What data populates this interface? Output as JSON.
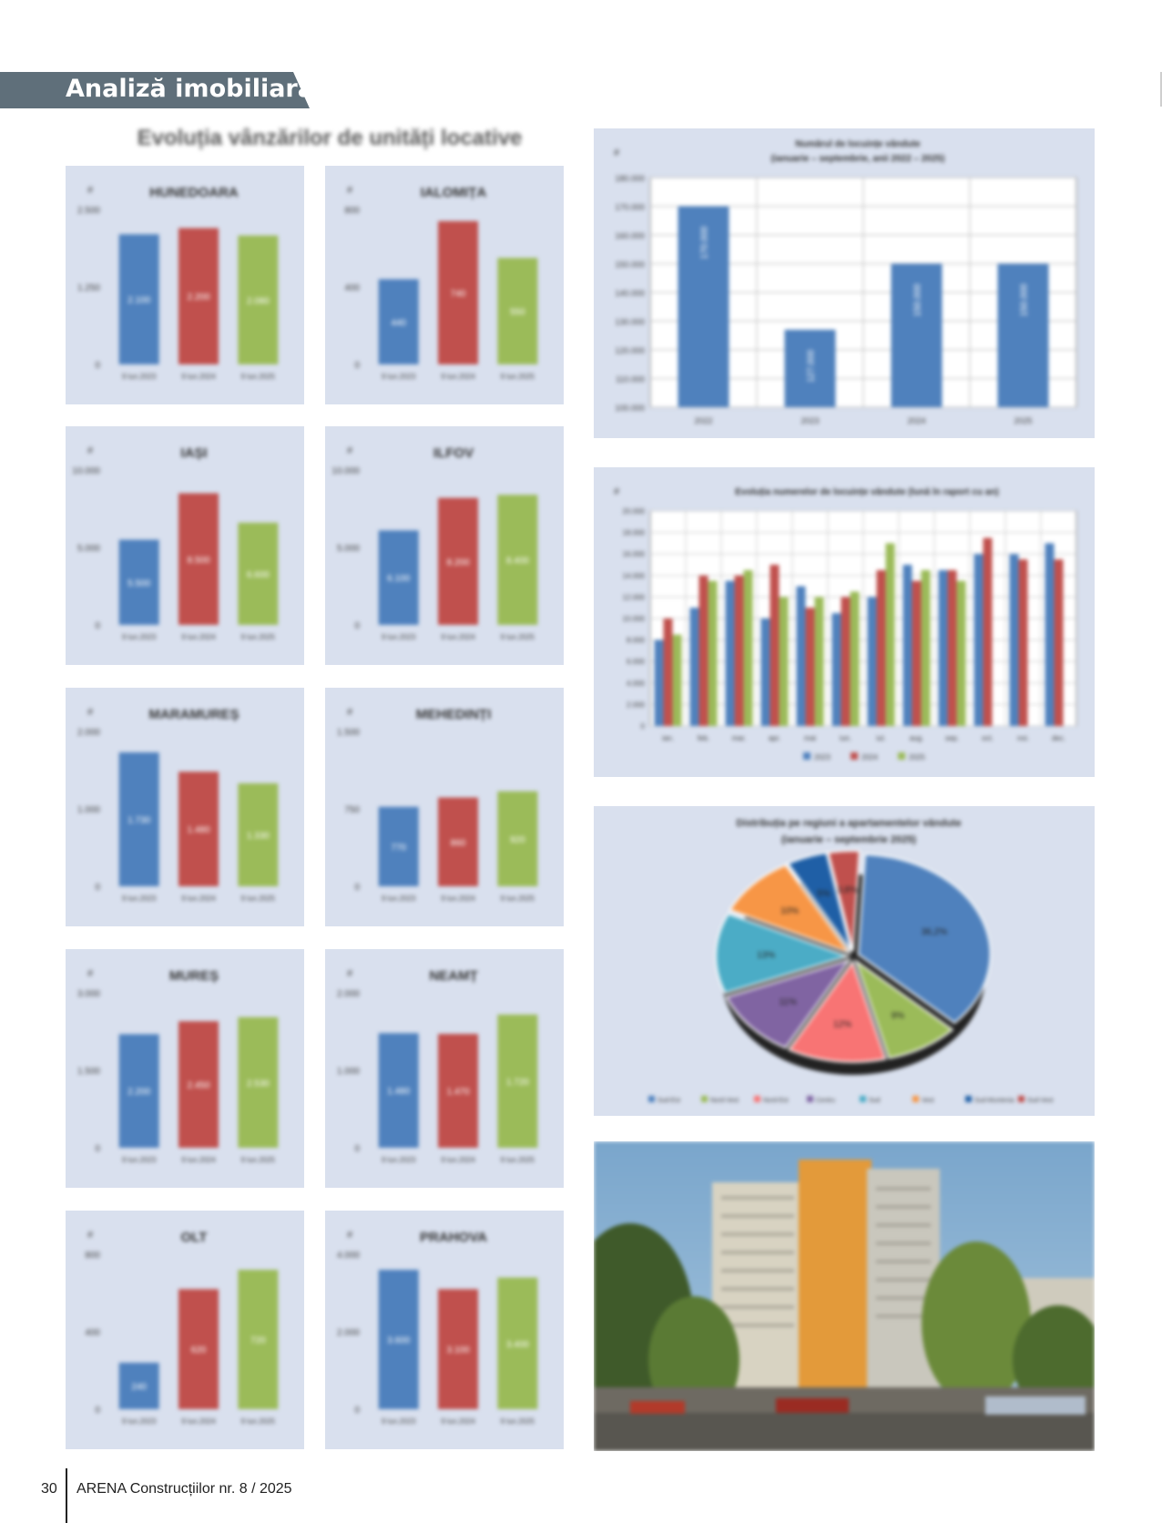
{
  "header": {
    "title": "Analiză imobiliară"
  },
  "section": {
    "title": "Evoluția vânzărilor de unități locative"
  },
  "colors": {
    "blue": "#4f81bd",
    "red": "#c0504d",
    "green": "#9bbb59",
    "purple": "#8064a2",
    "cyan": "#4bacc6",
    "orange": "#f79646",
    "panel": "#d9e0ee",
    "header_band": "#5f6f7a"
  },
  "footer": {
    "page_number": "30",
    "magazine": "ARENA Construcțiilor nr. 8 / 2025"
  },
  "chart_data": [
    {
      "type": "bar",
      "title": "HUNEDOARA",
      "ylabel": "#",
      "ylim": [
        0,
        2500
      ],
      "yticks": [
        "2.500",
        "1.250",
        "0"
      ],
      "categories": [
        "9 lun.2023",
        "9 lun.2024",
        "9 lun.2025"
      ],
      "values": [
        2100,
        2200,
        2080
      ],
      "data_labels": [
        "2.100",
        "2.200",
        "2.080"
      ],
      "colors": [
        "#4f81bd",
        "#c0504d",
        "#9bbb59"
      ]
    },
    {
      "type": "bar",
      "title": "IALOMIȚA",
      "ylabel": "#",
      "ylim": [
        0,
        800
      ],
      "yticks": [
        "800",
        "400",
        "0"
      ],
      "categories": [
        "9 lun.2023",
        "9 lun.2024",
        "9 lun.2025"
      ],
      "values": [
        440,
        740,
        550
      ],
      "data_labels": [
        "440",
        "740",
        "550"
      ],
      "colors": [
        "#4f81bd",
        "#c0504d",
        "#9bbb59"
      ]
    },
    {
      "type": "bar",
      "title": "IAȘI",
      "ylabel": "#",
      "ylim": [
        0,
        10000
      ],
      "yticks": [
        "10.000",
        "5.000",
        "0"
      ],
      "categories": [
        "9 lun.2023",
        "9 lun.2024",
        "9 lun.2025"
      ],
      "values": [
        5500,
        8500,
        6600
      ],
      "data_labels": [
        "5.500",
        "8.500",
        "6.600"
      ],
      "colors": [
        "#4f81bd",
        "#c0504d",
        "#9bbb59"
      ]
    },
    {
      "type": "bar",
      "title": "ILFOV",
      "ylabel": "#",
      "ylim": [
        0,
        10000
      ],
      "yticks": [
        "10.000",
        "5.000",
        "0"
      ],
      "categories": [
        "9 lun.2023",
        "9 lun.2024",
        "9 lun.2025"
      ],
      "values": [
        6100,
        8200,
        8400
      ],
      "data_labels": [
        "6.100",
        "8.200",
        "8.400"
      ],
      "colors": [
        "#4f81bd",
        "#c0504d",
        "#9bbb59"
      ]
    },
    {
      "type": "bar",
      "title": "MARAMUREȘ",
      "ylabel": "#",
      "ylim": [
        0,
        2000
      ],
      "yticks": [
        "2.000",
        "1.000",
        "0"
      ],
      "categories": [
        "9 lun.2023",
        "9 lun.2024",
        "9 lun.2025"
      ],
      "values": [
        1730,
        1480,
        1330
      ],
      "data_labels": [
        "1.730",
        "1.480",
        "1.330"
      ],
      "colors": [
        "#4f81bd",
        "#c0504d",
        "#9bbb59"
      ]
    },
    {
      "type": "bar",
      "title": "MEHEDINȚI",
      "ylabel": "#",
      "ylim": [
        0,
        1500
      ],
      "yticks": [
        "1.500",
        "750",
        "0"
      ],
      "categories": [
        "9 lun.2023",
        "9 lun.2024",
        "9 lun.2025"
      ],
      "values": [
        770,
        860,
        920
      ],
      "data_labels": [
        "770",
        "860",
        "920"
      ],
      "colors": [
        "#4f81bd",
        "#c0504d",
        "#9bbb59"
      ]
    },
    {
      "type": "bar",
      "title": "MUREȘ",
      "ylabel": "#",
      "ylim": [
        0,
        3000
      ],
      "yticks": [
        "3.000",
        "1.500",
        "0"
      ],
      "categories": [
        "9 lun.2023",
        "9 lun.2024",
        "9 lun.2025"
      ],
      "values": [
        2200,
        2450,
        2530
      ],
      "data_labels": [
        "2.200",
        "2.450",
        "2.530"
      ],
      "colors": [
        "#4f81bd",
        "#c0504d",
        "#9bbb59"
      ]
    },
    {
      "type": "bar",
      "title": "NEAMȚ",
      "ylabel": "#",
      "ylim": [
        0,
        2000
      ],
      "yticks": [
        "2.000",
        "1.000",
        "0"
      ],
      "categories": [
        "9 lun.2023",
        "9 lun.2024",
        "9 lun.2025"
      ],
      "values": [
        1480,
        1470,
        1720
      ],
      "data_labels": [
        "1.480",
        "1.470",
        "1.720"
      ],
      "colors": [
        "#4f81bd",
        "#c0504d",
        "#9bbb59"
      ]
    },
    {
      "type": "bar",
      "title": "OLT",
      "ylabel": "#",
      "ylim": [
        0,
        800
      ],
      "yticks": [
        "800",
        "400",
        "0"
      ],
      "categories": [
        "9 lun.2023",
        "9 lun.2024",
        "9 lun.2025"
      ],
      "values": [
        240,
        620,
        720
      ],
      "data_labels": [
        "240",
        "620",
        "720"
      ],
      "colors": [
        "#4f81bd",
        "#c0504d",
        "#9bbb59"
      ]
    },
    {
      "type": "bar",
      "title": "PRAHOVA",
      "ylabel": "#",
      "ylim": [
        0,
        4000
      ],
      "yticks": [
        "4.000",
        "2.000",
        "0"
      ],
      "categories": [
        "9 lun.2023",
        "9 lun.2024",
        "9 lun.2025"
      ],
      "values": [
        3600,
        3100,
        3400
      ],
      "data_labels": [
        "3.600",
        "3.100",
        "3.400"
      ],
      "colors": [
        "#4f81bd",
        "#c0504d",
        "#9bbb59"
      ]
    },
    {
      "type": "bar",
      "title": "Numărul de locuințe vândute",
      "subtitle": "(ianuarie – septembrie, anii 2022 – 2025)",
      "ylabel": "#",
      "ylim": [
        100000,
        180000
      ],
      "yticks": [
        "180.000",
        "170.000",
        "160.000",
        "150.000",
        "140.000",
        "130.000",
        "120.000",
        "110.000",
        "100.000"
      ],
      "categories": [
        "2022",
        "2023",
        "2024",
        "2025"
      ],
      "values": [
        170000,
        127000,
        150000,
        150000
      ],
      "data_labels": [
        "170.000",
        "127.000",
        "150.000",
        "150.000"
      ],
      "colors": [
        "#4f81bd"
      ]
    },
    {
      "type": "bar",
      "title": "Evoluția numerelor de locuințe vândute (lună în raport cu an)",
      "ylabel": "#",
      "ylim": [
        0,
        20000
      ],
      "yticks": [
        "20.000",
        "18.000",
        "16.000",
        "14.000",
        "12.000",
        "10.000",
        "8.000",
        "6.000",
        "4.000",
        "2.000",
        "0"
      ],
      "categories": [
        "ian.",
        "feb.",
        "mar.",
        "apr.",
        "mai",
        "iun.",
        "iul.",
        "aug.",
        "sep.",
        "oct.",
        "noi.",
        "dec."
      ],
      "series": [
        {
          "name": "2023",
          "color": "#4f81bd",
          "values": [
            8000,
            11000,
            13500,
            10000,
            13000,
            10500,
            12000,
            15000,
            14500,
            16000,
            16000,
            17000
          ]
        },
        {
          "name": "2024",
          "color": "#c0504d",
          "values": [
            10000,
            14000,
            14000,
            15000,
            11000,
            12000,
            14500,
            13500,
            14500,
            17500,
            15500,
            15500
          ]
        },
        {
          "name": "2025",
          "color": "#9bbb59",
          "values": [
            8500,
            13500,
            14500,
            12000,
            12000,
            12500,
            17000,
            14500,
            13500,
            null,
            null,
            null
          ]
        }
      ],
      "legend": "bottom"
    },
    {
      "type": "pie",
      "title": "Distribuția pe regiuni a apartamentelor vândute",
      "subtitle": "(ianuarie – septembrie 2025)",
      "categories": [
        "Sud-Est",
        "Nord-Vest",
        "Nord-Est",
        "Centru",
        "Sud",
        "Vest",
        "Sud-Muntenia",
        "Sud-Vest"
      ],
      "values": [
        36.2,
        9,
        12,
        11,
        13,
        10,
        5,
        3.8
      ],
      "data_labels": [
        "36,2%",
        "9%",
        "12%",
        "11%",
        "13%",
        "10%",
        "5%",
        "3,8%"
      ],
      "colors": [
        "#4f81bd",
        "#9bbb59",
        "#f87474",
        "#8064a2",
        "#4bacc6",
        "#f79646",
        "#1f5fa6",
        "#c0504d"
      ],
      "legend": "bottom"
    }
  ]
}
